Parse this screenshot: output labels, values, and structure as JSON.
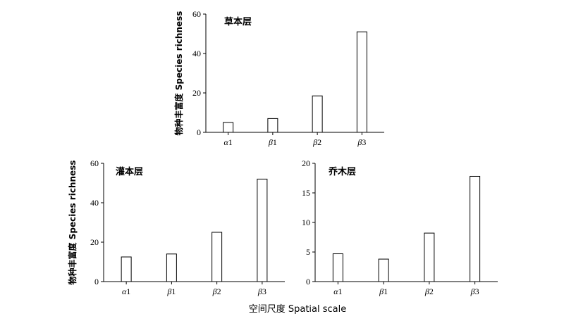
{
  "chart_data": [
    {
      "type": "bar",
      "title": "草本层",
      "ylabel": "物种丰富度 Species richness",
      "xlabel": "",
      "categories": [
        {
          "greek": "α",
          "num": "1"
        },
        {
          "greek": "β",
          "num": "1"
        },
        {
          "greek": "β",
          "num": "2"
        },
        {
          "greek": "β",
          "num": "3"
        }
      ],
      "values": [
        5,
        7,
        18.5,
        51
      ],
      "ylim": [
        0,
        60
      ],
      "yticks": [
        0,
        20,
        40,
        60
      ],
      "grid": false,
      "bar_fill": "#ffffff",
      "bar_stroke": "#000000"
    },
    {
      "type": "bar",
      "title": "灌本层",
      "ylabel": "物种丰富度 Species richness",
      "xlabel": "",
      "categories": [
        {
          "greek": "α",
          "num": "1"
        },
        {
          "greek": "β",
          "num": "1"
        },
        {
          "greek": "β",
          "num": "2"
        },
        {
          "greek": "β",
          "num": "3"
        }
      ],
      "values": [
        12.5,
        14,
        25,
        52
      ],
      "ylim": [
        0,
        60
      ],
      "yticks": [
        0,
        20,
        40,
        60
      ],
      "grid": false,
      "bar_fill": "#ffffff",
      "bar_stroke": "#000000"
    },
    {
      "type": "bar",
      "title": "乔木层",
      "ylabel": "",
      "xlabel": "",
      "categories": [
        {
          "greek": "α",
          "num": "1"
        },
        {
          "greek": "β",
          "num": "1"
        },
        {
          "greek": "β",
          "num": "2"
        },
        {
          "greek": "β",
          "num": "3"
        }
      ],
      "values": [
        4.7,
        3.8,
        8.2,
        17.8
      ],
      "ylim": [
        0,
        20
      ],
      "yticks": [
        0,
        5,
        10,
        15,
        20
      ],
      "grid": false,
      "bar_fill": "#ffffff",
      "bar_stroke": "#000000"
    }
  ],
  "shared_xlabel": "空间尺度 Spatial scale"
}
